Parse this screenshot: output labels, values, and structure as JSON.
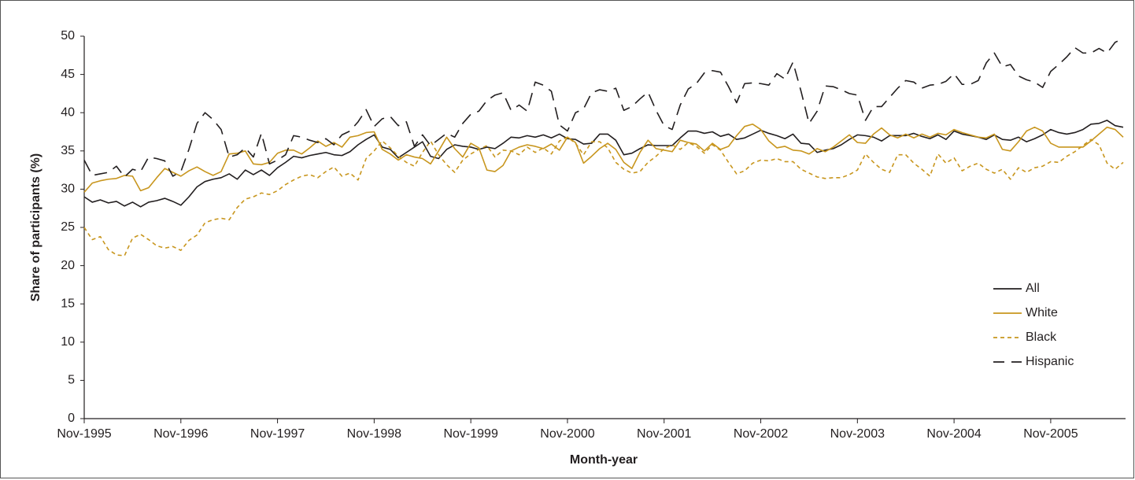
{
  "chart_data": {
    "type": "line",
    "x_label": "Month-year",
    "y_label": "Share of participants (%)",
    "categories": [
      "Nov-1995",
      null,
      null,
      null,
      null,
      null,
      null,
      null,
      null,
      null,
      null,
      null,
      "Nov-1996",
      null,
      null,
      null,
      null,
      null,
      null,
      null,
      null,
      null,
      null,
      null,
      "Nov-1997",
      null,
      null,
      null,
      null,
      null,
      null,
      null,
      null,
      null,
      null,
      null,
      "Nov-1998",
      null,
      null,
      null,
      null,
      null,
      null,
      null,
      null,
      null,
      null,
      null,
      "Nov-1999",
      null,
      null,
      null,
      null,
      null,
      null,
      null,
      null,
      null,
      null,
      null,
      "Nov-2000",
      null,
      null,
      null,
      null,
      null,
      null,
      null,
      null,
      null,
      null,
      null,
      "Nov-2001",
      null,
      null,
      null,
      null,
      null,
      null,
      null,
      null,
      null,
      null,
      null,
      "Nov-2002",
      null,
      null,
      null,
      null,
      null,
      null,
      null,
      null,
      null,
      null,
      null,
      "Nov-2003",
      null,
      null,
      null,
      null,
      null,
      null,
      null,
      null,
      null,
      null,
      null,
      "Nov-2004",
      null,
      null,
      null,
      null,
      null,
      null,
      null,
      null,
      null,
      null,
      null,
      "Nov-2005",
      null,
      null,
      null,
      null,
      null,
      null,
      null,
      null,
      null
    ],
    "series": [
      {
        "name": "All",
        "color": "#231f20",
        "linestyle": "solid",
        "values": [
          29,
          28.3,
          28.6,
          28.2,
          28.4,
          27.8,
          28.3,
          27.7,
          28.3,
          28.5,
          28.8,
          28.4,
          27.9,
          29,
          30.3,
          31,
          31.3,
          31.5,
          32,
          31.3,
          32.5,
          31.9,
          32.5,
          31.8,
          32.8,
          33.5,
          34.3,
          34.1,
          34.4,
          34.6,
          34.8,
          34.5,
          34.4,
          34.9,
          35.8,
          36.5,
          37.1,
          35.5,
          35.2,
          34.1,
          34.8,
          35.5,
          36.2,
          34.3,
          34,
          35.2,
          35.8,
          35.6,
          35.5,
          35.2,
          35.5,
          35.3,
          36,
          36.8,
          36.7,
          37,
          36.8,
          37.1,
          36.7,
          37.2,
          36.6,
          36.5,
          35.9,
          36,
          37.2,
          37.2,
          36.4,
          34.5,
          34.7,
          35.3,
          35.8,
          35.7,
          35.7,
          35.7,
          36.7,
          37.6,
          37.6,
          37.3,
          37.5,
          36.9,
          37.2,
          36.5,
          36.7,
          37.2,
          37.7,
          37.3,
          37,
          36.6,
          37.2,
          36,
          35.9,
          34.8,
          35.1,
          35.3,
          35.8,
          36.5,
          37.1,
          37,
          36.8,
          36.3,
          37,
          37,
          37,
          37.3,
          36.9,
          36.6,
          37.1,
          36.5,
          37.6,
          37.2,
          37,
          36.8,
          36.5,
          37.1,
          36.5,
          36.4,
          36.8,
          36.2,
          36.6,
          37.1,
          37.8,
          37.4,
          37.2,
          37.4,
          37.8,
          38.5,
          38.6,
          39,
          38.3,
          38.1
        ]
      },
      {
        "name": "White",
        "color": "#c8961e",
        "linestyle": "solid",
        "values": [
          29.6,
          30.8,
          31.1,
          31.3,
          31.4,
          31.8,
          31.7,
          29.8,
          30.2,
          31.5,
          32.7,
          32.2,
          31.7,
          32.4,
          32.9,
          32.3,
          31.8,
          32.3,
          34.6,
          34.7,
          35,
          33.3,
          33.2,
          33.5,
          34.7,
          35.1,
          35.1,
          34.6,
          35.4,
          36.3,
          35.6,
          36.1,
          35.5,
          36.8,
          37,
          37.4,
          37.5,
          35.2,
          34.6,
          33.8,
          34.5,
          34.2,
          34,
          33.3,
          35,
          36.8,
          35.3,
          34.2,
          36,
          35.4,
          32.5,
          32.3,
          33.1,
          35,
          35.5,
          35.8,
          35.6,
          35.3,
          35.9,
          35.1,
          36.8,
          36.1,
          33.4,
          34.3,
          35.3,
          36,
          35.2,
          33.5,
          32.7,
          34.8,
          36.4,
          35.3,
          35.1,
          34.9,
          36.4,
          36.1,
          35.9,
          35,
          36,
          35.2,
          35.6,
          37,
          38.2,
          38.5,
          37.8,
          36.3,
          35.4,
          35.6,
          35.1,
          35,
          34.6,
          35.3,
          34.9,
          35.5,
          36.3,
          37.1,
          36.1,
          36,
          37.2,
          38,
          37.1,
          36.7,
          37.2,
          36.7,
          37.2,
          36.8,
          37.3,
          37.1,
          37.8,
          37.4,
          37.1,
          36.8,
          36.7,
          37.2,
          35.2,
          35,
          36.2,
          37.6,
          38.1,
          37.6,
          36,
          35.5,
          35.5,
          35.5,
          35.5,
          36.3,
          37.2,
          38.1,
          37.8,
          36.8
        ]
      },
      {
        "name": "Black",
        "color": "#c8961e",
        "linestyle": "dotted",
        "values": [
          25,
          23.4,
          23.8,
          22.1,
          21.4,
          21.3,
          23.6,
          24.1,
          23.4,
          22.6,
          22.3,
          22.5,
          22,
          23.3,
          24,
          25.6,
          26,
          26.2,
          26,
          27.6,
          28.7,
          29,
          29.5,
          29.3,
          29.8,
          30.6,
          31.2,
          31.7,
          31.9,
          31.5,
          32.3,
          32.9,
          31.7,
          32.1,
          31.2,
          34,
          35,
          36.3,
          35.4,
          34.3,
          33.5,
          33,
          34.8,
          36.3,
          34.5,
          33.2,
          32.2,
          33.8,
          34.6,
          35.2,
          35.7,
          34.2,
          35.1,
          35,
          34.5,
          35.5,
          34.8,
          35.4,
          34.6,
          36.3,
          36.8,
          36,
          34.5,
          36.2,
          36.2,
          35.4,
          33.5,
          32.6,
          32.1,
          32.3,
          33.5,
          34.3,
          35.3,
          35.8,
          35.2,
          36.1,
          35.6,
          34.7,
          35.8,
          35.1,
          33.5,
          32,
          32.4,
          33.4,
          33.8,
          33.7,
          34,
          33.6,
          33.6,
          32.6,
          32.1,
          31.6,
          31.4,
          31.5,
          31.5,
          31.9,
          32.5,
          34.6,
          33.5,
          32.6,
          32.2,
          34.5,
          34.5,
          33.4,
          32.6,
          31.7,
          34.6,
          33.4,
          34.1,
          32.4,
          33,
          33.4,
          32.6,
          32.1,
          32.6,
          31.3,
          32.8,
          32.2,
          32.8,
          33,
          33.6,
          33.5,
          34.3,
          34.9,
          35.7,
          36.5,
          35.8,
          33.4,
          32.6,
          33.5
        ]
      },
      {
        "name": "Hispanic",
        "color": "#231f20",
        "linestyle": "dashed",
        "values": [
          33.8,
          31.8,
          32,
          32.2,
          33,
          31.6,
          32.6,
          32.3,
          34.2,
          34,
          33.7,
          31.7,
          32.3,
          35.2,
          38.6,
          40,
          39.1,
          37.8,
          34.2,
          34.5,
          35.4,
          34.2,
          37.3,
          33.3,
          33.8,
          34.5,
          37,
          36.8,
          36.4,
          36.1,
          36.6,
          35.8,
          37.1,
          37.6,
          38.8,
          40.4,
          38.2,
          39.2,
          39.5,
          38.3,
          38.8,
          35.6,
          37.1,
          35.7,
          36.5,
          37.3,
          36.8,
          38.6,
          39.8,
          40.2,
          41.6,
          42.3,
          42.6,
          40.3,
          41,
          40.2,
          44,
          43.6,
          42.8,
          38.4,
          37.6,
          40,
          40.5,
          42.6,
          43,
          42.8,
          43.2,
          40.3,
          40.8,
          41.8,
          42.7,
          40.3,
          38.3,
          37.8,
          41,
          43.1,
          43.8,
          45.2,
          45.5,
          45.3,
          43.4,
          41.3,
          43.8,
          43.9,
          43.8,
          43.6,
          45.1,
          44.4,
          46.6,
          42.8,
          38.6,
          40.2,
          43.5,
          43.4,
          43,
          42.5,
          42.3,
          39,
          40.8,
          40.8,
          42,
          43.2,
          44.2,
          44,
          43.2,
          43.6,
          43.7,
          44.1,
          45.1,
          43.7,
          43.7,
          44.2,
          46.5,
          47.8,
          46,
          46.3,
          44.8,
          44.3,
          44,
          43.3,
          45.4,
          46.3,
          47.3,
          48.5,
          47.8,
          47.8,
          48.4,
          47.8,
          49.2,
          49.7
        ]
      }
    ],
    "ylim": [
      0,
      50
    ],
    "yticks": [
      0,
      5,
      10,
      15,
      20,
      25,
      30,
      35,
      40,
      45,
      50
    ],
    "grid": false,
    "legend": "lower right"
  }
}
